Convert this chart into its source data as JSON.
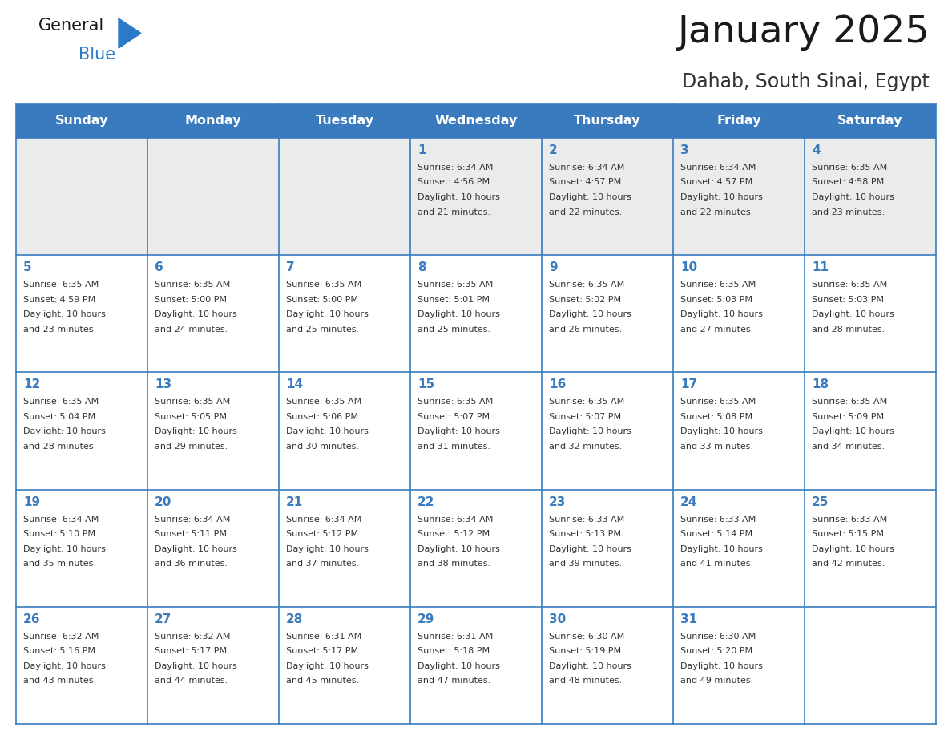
{
  "title": "January 2025",
  "subtitle": "Dahab, South Sinai, Egypt",
  "header_bg": "#3a7bbf",
  "header_text_color": "#ffffff",
  "cell_bg_light": "#ebebeb",
  "cell_bg_white": "#ffffff",
  "border_color": "#3a7bbf",
  "day_names": [
    "Sunday",
    "Monday",
    "Tuesday",
    "Wednesday",
    "Thursday",
    "Friday",
    "Saturday"
  ],
  "title_color": "#1a1a1a",
  "subtitle_color": "#333333",
  "day_number_color": "#3a7bbf",
  "cell_text_color": "#333333",
  "logo_general_color": "#1a1a1a",
  "logo_blue_color": "#2a7ac7",
  "weeks": [
    [
      {
        "day": 0,
        "sunrise": "",
        "sunset": "",
        "daylight": ""
      },
      {
        "day": 0,
        "sunrise": "",
        "sunset": "",
        "daylight": ""
      },
      {
        "day": 0,
        "sunrise": "",
        "sunset": "",
        "daylight": ""
      },
      {
        "day": 1,
        "sunrise": "6:34 AM",
        "sunset": "4:56 PM",
        "daylight": "10 hours and 21 minutes."
      },
      {
        "day": 2,
        "sunrise": "6:34 AM",
        "sunset": "4:57 PM",
        "daylight": "10 hours and 22 minutes."
      },
      {
        "day": 3,
        "sunrise": "6:34 AM",
        "sunset": "4:57 PM",
        "daylight": "10 hours and 22 minutes."
      },
      {
        "day": 4,
        "sunrise": "6:35 AM",
        "sunset": "4:58 PM",
        "daylight": "10 hours and 23 minutes."
      }
    ],
    [
      {
        "day": 5,
        "sunrise": "6:35 AM",
        "sunset": "4:59 PM",
        "daylight": "10 hours and 23 minutes."
      },
      {
        "day": 6,
        "sunrise": "6:35 AM",
        "sunset": "5:00 PM",
        "daylight": "10 hours and 24 minutes."
      },
      {
        "day": 7,
        "sunrise": "6:35 AM",
        "sunset": "5:00 PM",
        "daylight": "10 hours and 25 minutes."
      },
      {
        "day": 8,
        "sunrise": "6:35 AM",
        "sunset": "5:01 PM",
        "daylight": "10 hours and 25 minutes."
      },
      {
        "day": 9,
        "sunrise": "6:35 AM",
        "sunset": "5:02 PM",
        "daylight": "10 hours and 26 minutes."
      },
      {
        "day": 10,
        "sunrise": "6:35 AM",
        "sunset": "5:03 PM",
        "daylight": "10 hours and 27 minutes."
      },
      {
        "day": 11,
        "sunrise": "6:35 AM",
        "sunset": "5:03 PM",
        "daylight": "10 hours and 28 minutes."
      }
    ],
    [
      {
        "day": 12,
        "sunrise": "6:35 AM",
        "sunset": "5:04 PM",
        "daylight": "10 hours and 28 minutes."
      },
      {
        "day": 13,
        "sunrise": "6:35 AM",
        "sunset": "5:05 PM",
        "daylight": "10 hours and 29 minutes."
      },
      {
        "day": 14,
        "sunrise": "6:35 AM",
        "sunset": "5:06 PM",
        "daylight": "10 hours and 30 minutes."
      },
      {
        "day": 15,
        "sunrise": "6:35 AM",
        "sunset": "5:07 PM",
        "daylight": "10 hours and 31 minutes."
      },
      {
        "day": 16,
        "sunrise": "6:35 AM",
        "sunset": "5:07 PM",
        "daylight": "10 hours and 32 minutes."
      },
      {
        "day": 17,
        "sunrise": "6:35 AM",
        "sunset": "5:08 PM",
        "daylight": "10 hours and 33 minutes."
      },
      {
        "day": 18,
        "sunrise": "6:35 AM",
        "sunset": "5:09 PM",
        "daylight": "10 hours and 34 minutes."
      }
    ],
    [
      {
        "day": 19,
        "sunrise": "6:34 AM",
        "sunset": "5:10 PM",
        "daylight": "10 hours and 35 minutes."
      },
      {
        "day": 20,
        "sunrise": "6:34 AM",
        "sunset": "5:11 PM",
        "daylight": "10 hours and 36 minutes."
      },
      {
        "day": 21,
        "sunrise": "6:34 AM",
        "sunset": "5:12 PM",
        "daylight": "10 hours and 37 minutes."
      },
      {
        "day": 22,
        "sunrise": "6:34 AM",
        "sunset": "5:12 PM",
        "daylight": "10 hours and 38 minutes."
      },
      {
        "day": 23,
        "sunrise": "6:33 AM",
        "sunset": "5:13 PM",
        "daylight": "10 hours and 39 minutes."
      },
      {
        "day": 24,
        "sunrise": "6:33 AM",
        "sunset": "5:14 PM",
        "daylight": "10 hours and 41 minutes."
      },
      {
        "day": 25,
        "sunrise": "6:33 AM",
        "sunset": "5:15 PM",
        "daylight": "10 hours and 42 minutes."
      }
    ],
    [
      {
        "day": 26,
        "sunrise": "6:32 AM",
        "sunset": "5:16 PM",
        "daylight": "10 hours and 43 minutes."
      },
      {
        "day": 27,
        "sunrise": "6:32 AM",
        "sunset": "5:17 PM",
        "daylight": "10 hours and 44 minutes."
      },
      {
        "day": 28,
        "sunrise": "6:31 AM",
        "sunset": "5:17 PM",
        "daylight": "10 hours and 45 minutes."
      },
      {
        "day": 29,
        "sunrise": "6:31 AM",
        "sunset": "5:18 PM",
        "daylight": "10 hours and 47 minutes."
      },
      {
        "day": 30,
        "sunrise": "6:30 AM",
        "sunset": "5:19 PM",
        "daylight": "10 hours and 48 minutes."
      },
      {
        "day": 31,
        "sunrise": "6:30 AM",
        "sunset": "5:20 PM",
        "daylight": "10 hours and 49 minutes."
      },
      {
        "day": 0,
        "sunrise": "",
        "sunset": "",
        "daylight": ""
      }
    ]
  ],
  "fig_width": 11.88,
  "fig_height": 9.18,
  "dpi": 100
}
